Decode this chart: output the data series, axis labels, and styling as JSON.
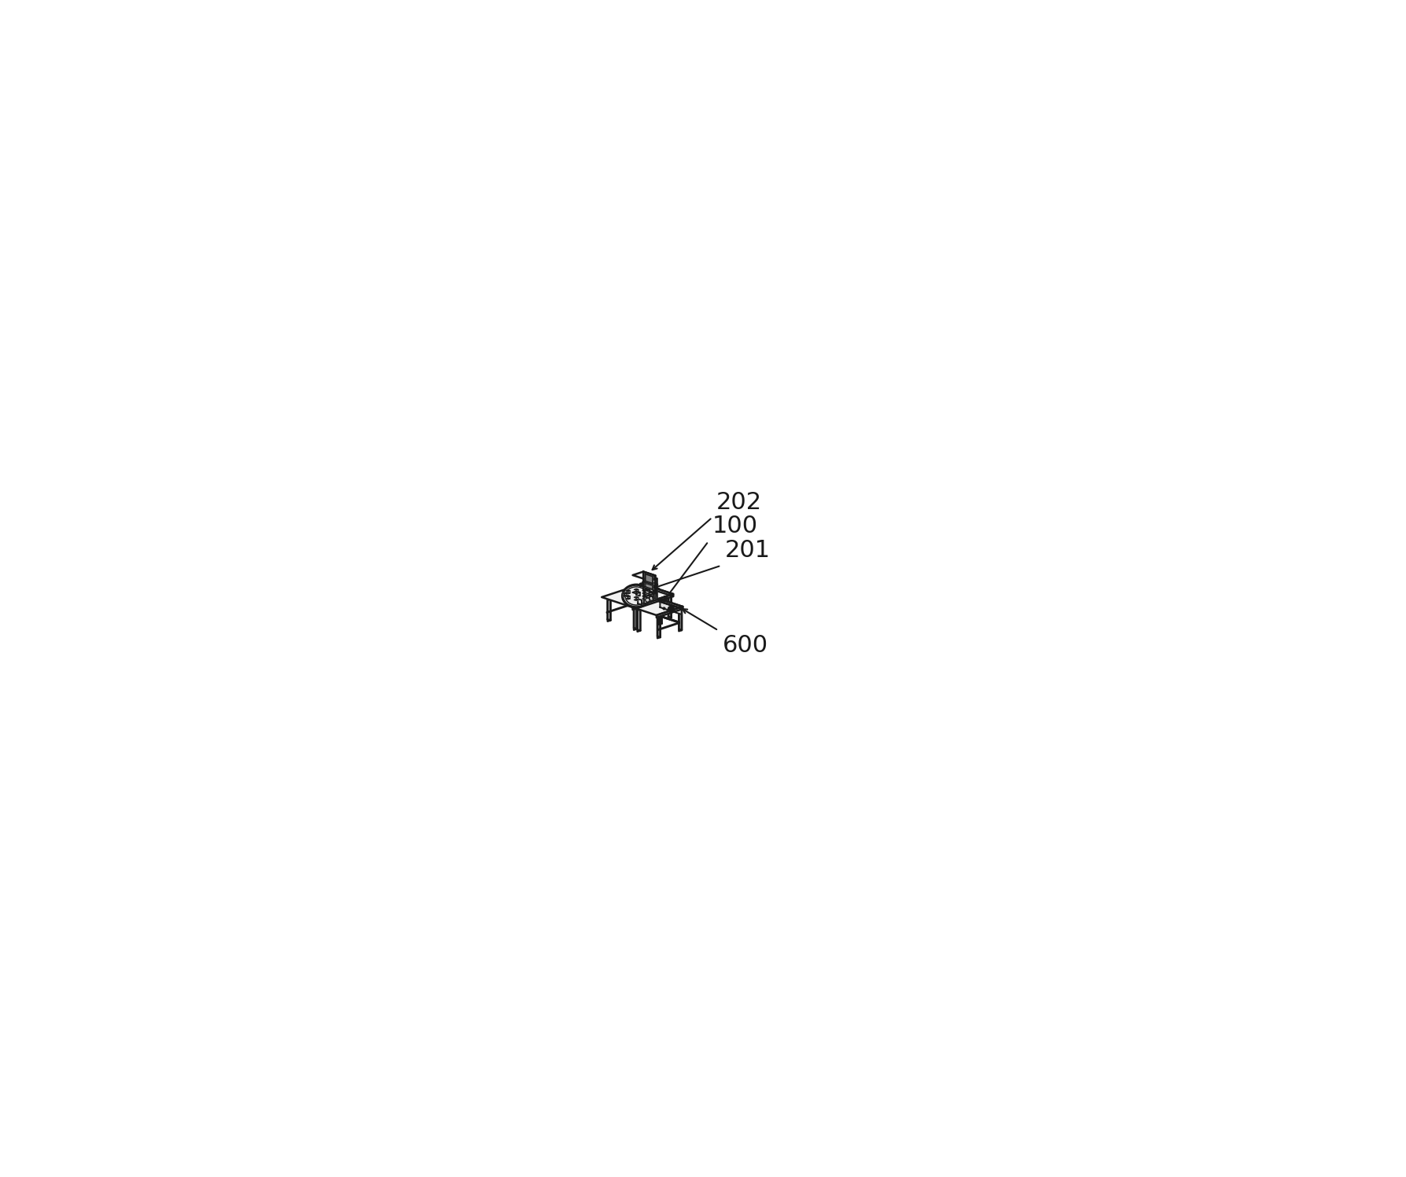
{
  "background_color": "#ffffff",
  "line_color": "#1a1a1a",
  "fill_light": "#f2f2f2",
  "fill_mid": "#e0e0e0",
  "fill_dark": "#cccccc",
  "fill_darker": "#b8b8b8",
  "line_width": 1.8,
  "figsize": [
    17.88,
    14.98
  ],
  "dpi": 100,
  "label_202": "202",
  "label_201": "201",
  "label_100": "100",
  "label_600": "600",
  "label_fontsize": 22
}
